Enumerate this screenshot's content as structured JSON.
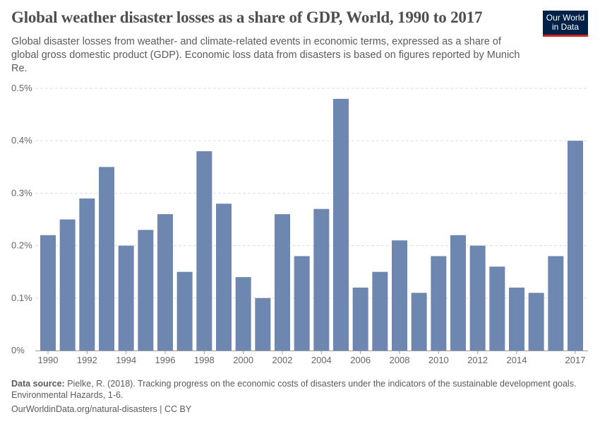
{
  "header": {
    "title": "Global weather disaster losses as a share of GDP, World, 1990 to 2017",
    "subtitle": "Global disaster losses from weather- and climate-related events in economic terms, expressed as a share of global gross domestic product (GDP). Economic loss data from disasters is based on figures reported by Munich Re.",
    "logo": "Our World in Data"
  },
  "footer": {
    "source_label": "Data source:",
    "source_text": " Pielke, R. (2018). Tracking progress on the economic costs of disasters under the indicators of the sustainable development goals. Environmental Hazards, 1-6.",
    "url": "OurWorldinData.org/natural-disasters | CC BY"
  },
  "chart_data": {
    "type": "bar",
    "bar_color": "#6d87b0",
    "ylim": [
      0,
      0.5
    ],
    "grid": true,
    "yticks": [
      0,
      0.1,
      0.2,
      0.3,
      0.4,
      0.5
    ],
    "ytick_labels": [
      "0%",
      "0.1%",
      "0.2%",
      "0.3%",
      "0.4%",
      "0.5%"
    ],
    "xtick_labels": [
      "1990",
      "1992",
      "1994",
      "1996",
      "1998",
      "2000",
      "2002",
      "2004",
      "2006",
      "2008",
      "2010",
      "2012",
      "2014",
      "2017"
    ],
    "categories": [
      1990,
      1991,
      1992,
      1993,
      1994,
      1995,
      1996,
      1997,
      1998,
      1999,
      2000,
      2001,
      2002,
      2003,
      2004,
      2005,
      2006,
      2007,
      2008,
      2009,
      2010,
      2011,
      2012,
      2013,
      2014,
      2015,
      2016,
      2017
    ],
    "values": [
      0.22,
      0.25,
      0.29,
      0.35,
      0.2,
      0.23,
      0.26,
      0.15,
      0.38,
      0.28,
      0.14,
      0.1,
      0.26,
      0.18,
      0.27,
      0.48,
      0.12,
      0.15,
      0.21,
      0.11,
      0.18,
      0.22,
      0.2,
      0.16,
      0.12,
      0.11,
      0.18,
      0.4
    ]
  }
}
